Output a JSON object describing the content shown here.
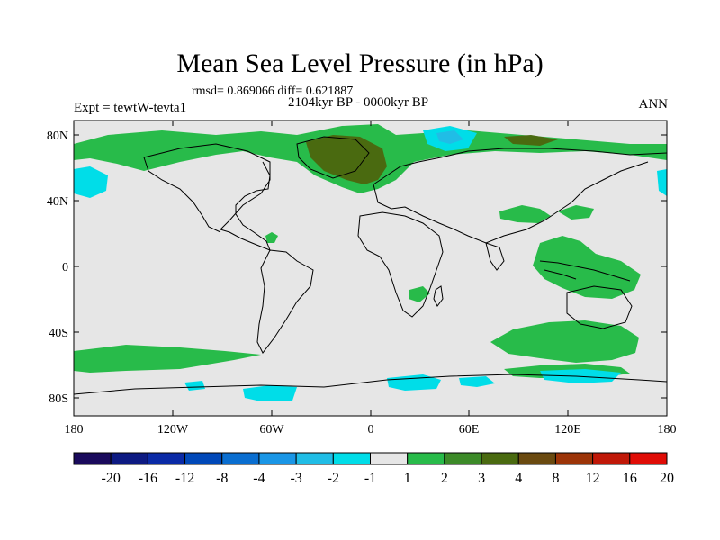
{
  "title": "Mean Sea Level Pressure (in hPa)",
  "stats": "rmsd= 0.869066 diff= 0.621887",
  "period": "2104kyr BP - 0000kyr BP",
  "experiment": "Expt = tewtW-tevta1",
  "season": "ANN",
  "y_ticks": [
    "80N",
    "40N",
    "0",
    "40S",
    "80S"
  ],
  "x_ticks": [
    "180",
    "120W",
    "60W",
    "0",
    "60E",
    "120E",
    "180"
  ],
  "colorbar": {
    "labels": [
      "-20",
      "-16",
      "-12",
      "-8",
      "-4",
      "-3",
      "-2",
      "-1",
      "1",
      "2",
      "3",
      "4",
      "8",
      "12",
      "16",
      "20"
    ],
    "colors": [
      "#1a0a5c",
      "#0d1a82",
      "#0a2aa6",
      "#0048b8",
      "#0a6ed0",
      "#1a96e6",
      "#20bde6",
      "#00dde8",
      "#e6e6e6",
      "#28bb4a",
      "#3c8a28",
      "#4a6a10",
      "#6a4a10",
      "#9c3408",
      "#c01808",
      "#e00c06"
    ]
  },
  "colors": {
    "background_field": "#e6e6e6",
    "positive_1_2": "#28bb4a",
    "positive_3_4": "#4a6a10",
    "negative_1_2": "#00dde8",
    "negative_2_3": "#20bde6"
  }
}
